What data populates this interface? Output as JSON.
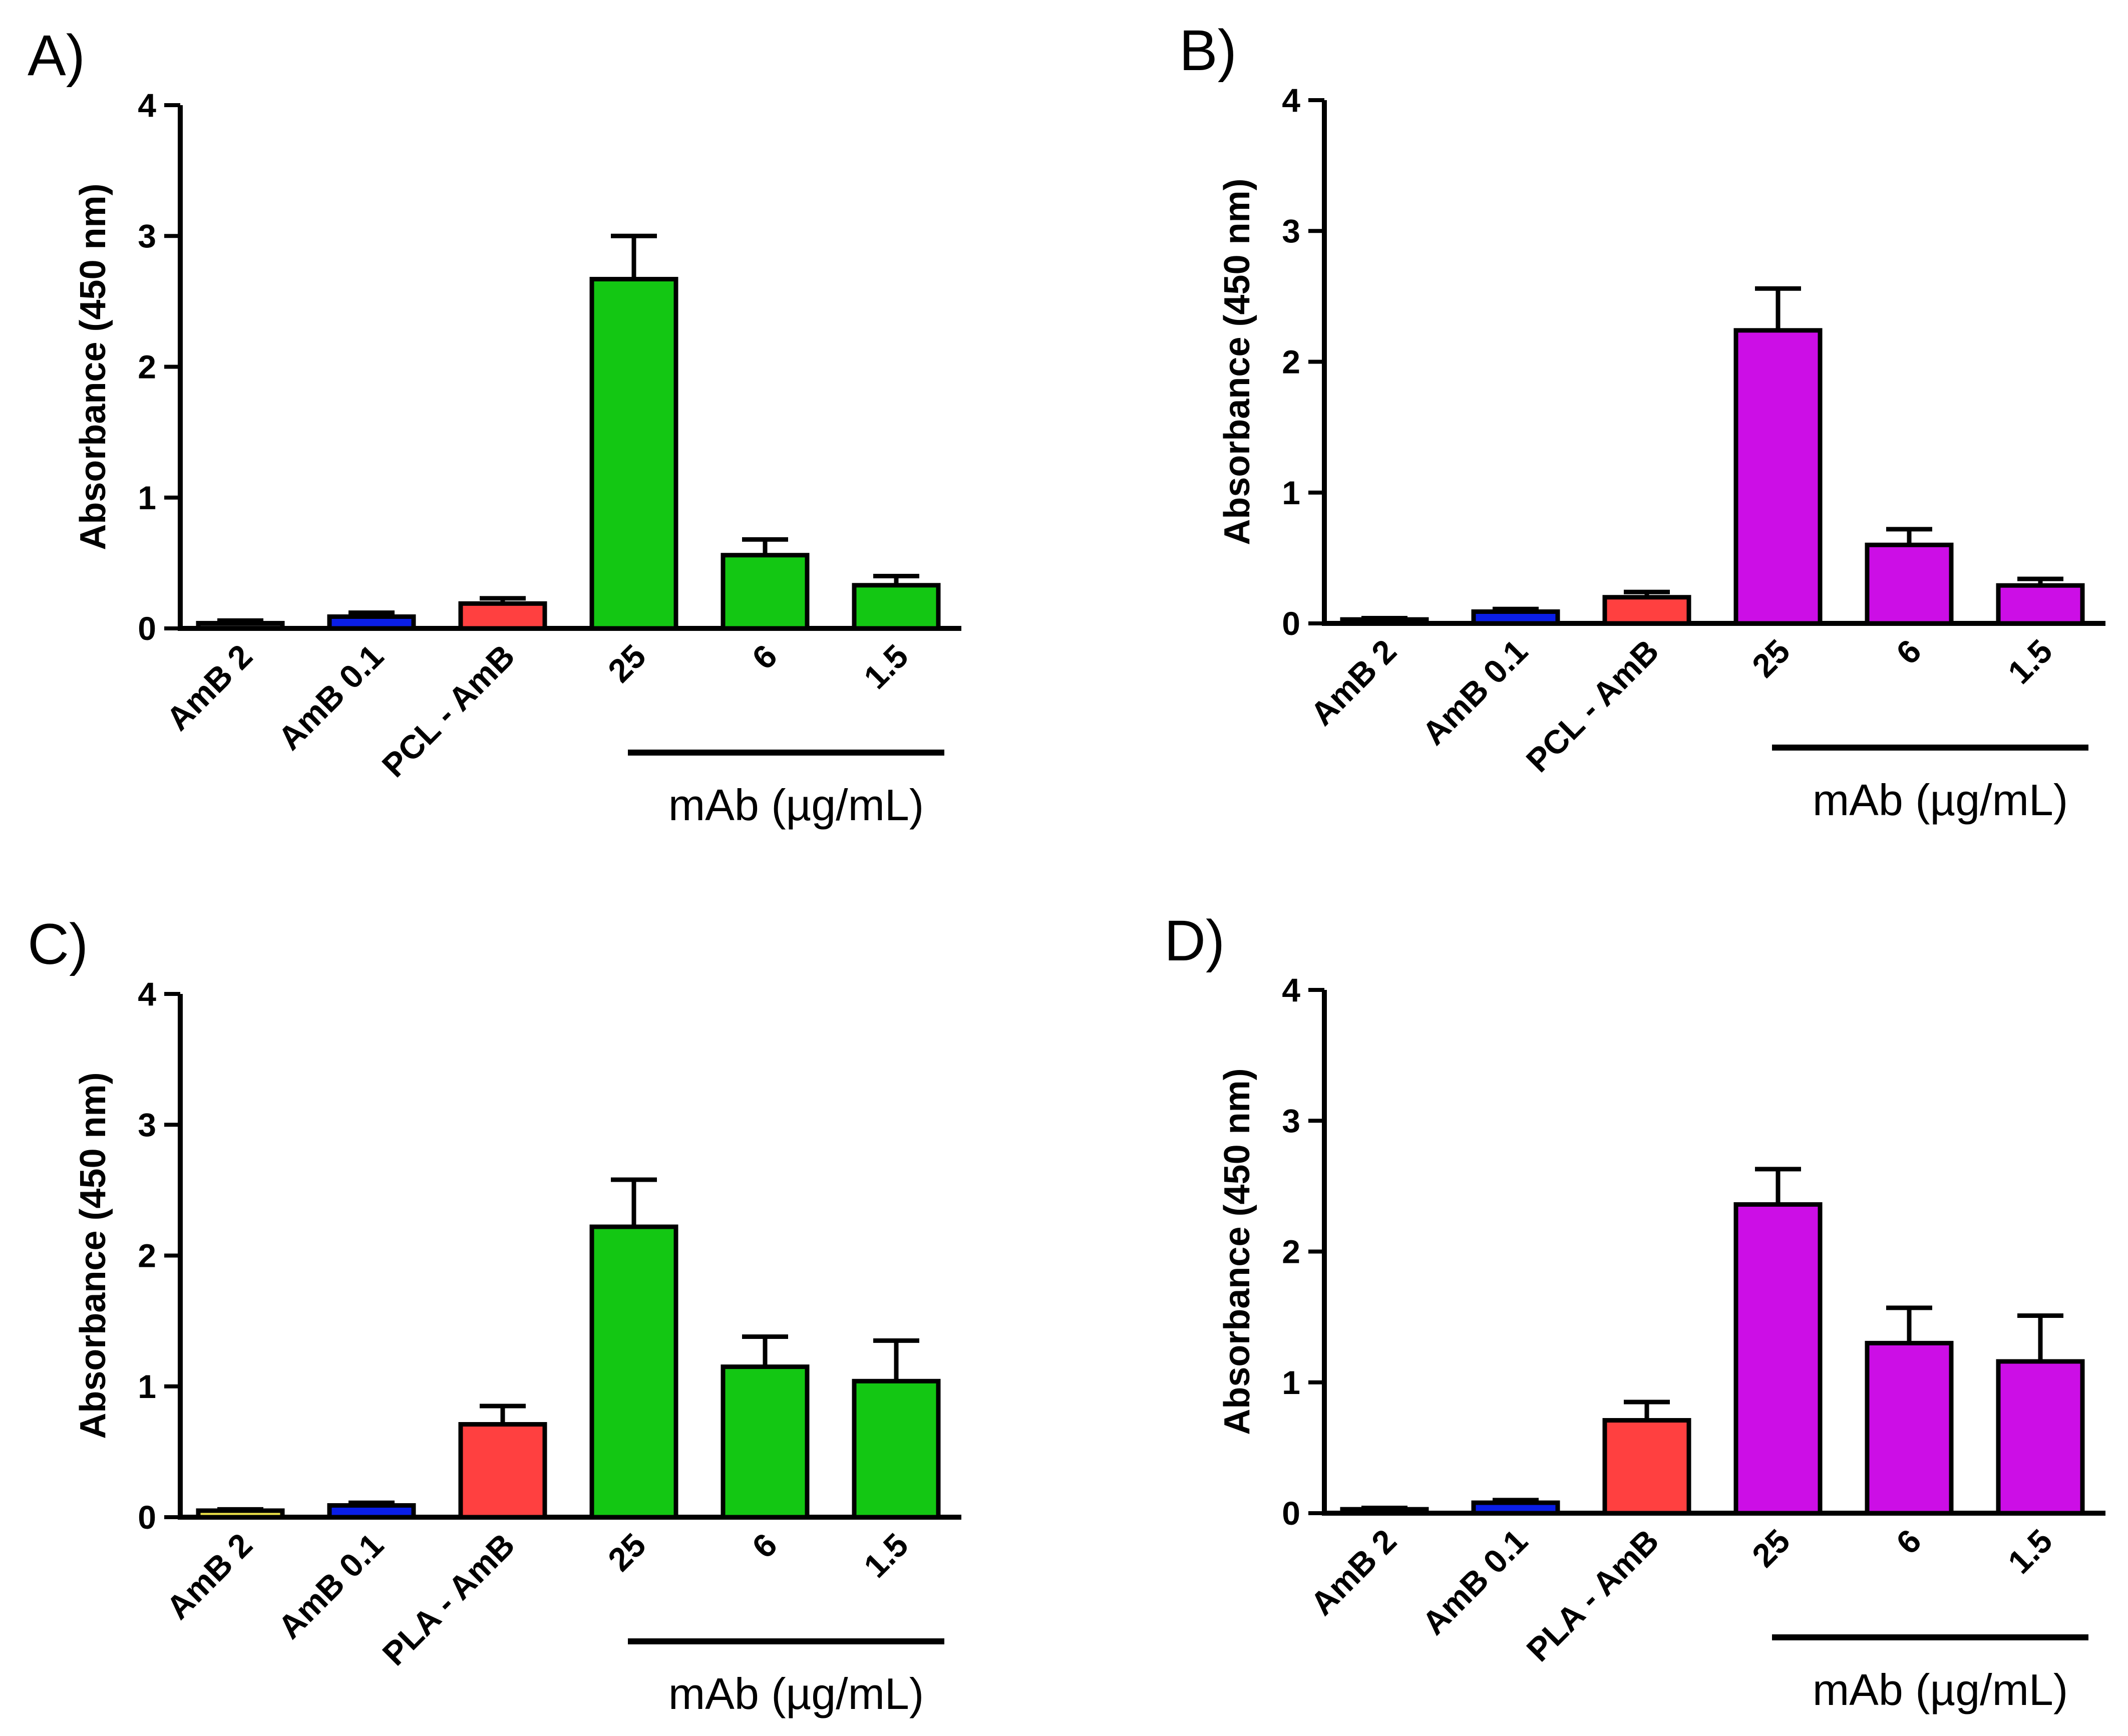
{
  "chart_data": [
    {
      "panel": "A)",
      "type": "bar",
      "ylabel": "Absorbance (450 nm)",
      "ylim": [
        0,
        4
      ],
      "yticks": [
        "0",
        "1",
        "2",
        "3",
        "4"
      ],
      "categories": [
        "AmB 2",
        "AmB 0.1",
        "PCL - AmB",
        "25",
        "6",
        "1.5"
      ],
      "values": [
        0.04,
        0.09,
        0.19,
        2.67,
        0.56,
        0.33
      ],
      "errors": [
        0.02,
        0.03,
        0.04,
        0.33,
        0.12,
        0.07
      ],
      "colors": [
        "#2a2a2a",
        "#0a1ee8",
        "#ff4040",
        "#13c713",
        "#13c713",
        "#13c713"
      ],
      "group_label": "mAb (µg/mL)",
      "group_span": [
        3,
        5
      ]
    },
    {
      "panel": "B)",
      "type": "bar",
      "ylabel": "Absorbance (450 nm)",
      "ylim": [
        0,
        4
      ],
      "yticks": [
        "0",
        "1",
        "2",
        "3",
        "4"
      ],
      "categories": [
        "AmB 2",
        "AmB 0.1",
        "PCL - AmB",
        "25",
        "6",
        "1.5"
      ],
      "values": [
        0.03,
        0.09,
        0.2,
        2.24,
        0.6,
        0.29
      ],
      "errors": [
        0.01,
        0.02,
        0.04,
        0.32,
        0.12,
        0.05
      ],
      "colors": [
        "#2a2a2a",
        "#0a1ee8",
        "#ff4040",
        "#cc0ee6",
        "#cc0ee6",
        "#cc0ee6"
      ],
      "group_label": "mAb (µg/mL)",
      "group_span": [
        3,
        5
      ]
    },
    {
      "panel": "C)",
      "type": "bar",
      "ylabel": "Absorbance (450 nm)",
      "ylim": [
        0,
        4
      ],
      "yticks": [
        "0",
        "1",
        "2",
        "3",
        "4"
      ],
      "categories": [
        "AmB 2",
        "AmB 0.1",
        "PLA - AmB",
        "25",
        "6",
        "1.5"
      ],
      "values": [
        0.05,
        0.09,
        0.71,
        2.22,
        1.15,
        1.04
      ],
      "errors": [
        0.01,
        0.02,
        0.14,
        0.36,
        0.23,
        0.31
      ],
      "colors": [
        "#f0e64a",
        "#0a1ee8",
        "#ff4040",
        "#13c713",
        "#13c713",
        "#13c713"
      ],
      "group_label": "mAb (µg/mL)",
      "group_span": [
        3,
        5
      ]
    },
    {
      "panel": "D)",
      "type": "bar",
      "ylabel": "Absorbance (450 nm)",
      "ylim": [
        0,
        4
      ],
      "yticks": [
        "0",
        "1",
        "2",
        "3",
        "4"
      ],
      "categories": [
        "AmB 2",
        "AmB 0.1",
        "PLA - AmB",
        "25",
        "6",
        "1.5"
      ],
      "values": [
        0.03,
        0.08,
        0.71,
        2.36,
        1.3,
        1.16
      ],
      "errors": [
        0.01,
        0.02,
        0.14,
        0.27,
        0.27,
        0.35
      ],
      "colors": [
        "#2a2a2a",
        "#0a1ee8",
        "#ff4040",
        "#cc0ee6",
        "#cc0ee6",
        "#cc0ee6"
      ],
      "group_label": "mAb (µg/mL)",
      "group_span": [
        3,
        5
      ]
    }
  ]
}
